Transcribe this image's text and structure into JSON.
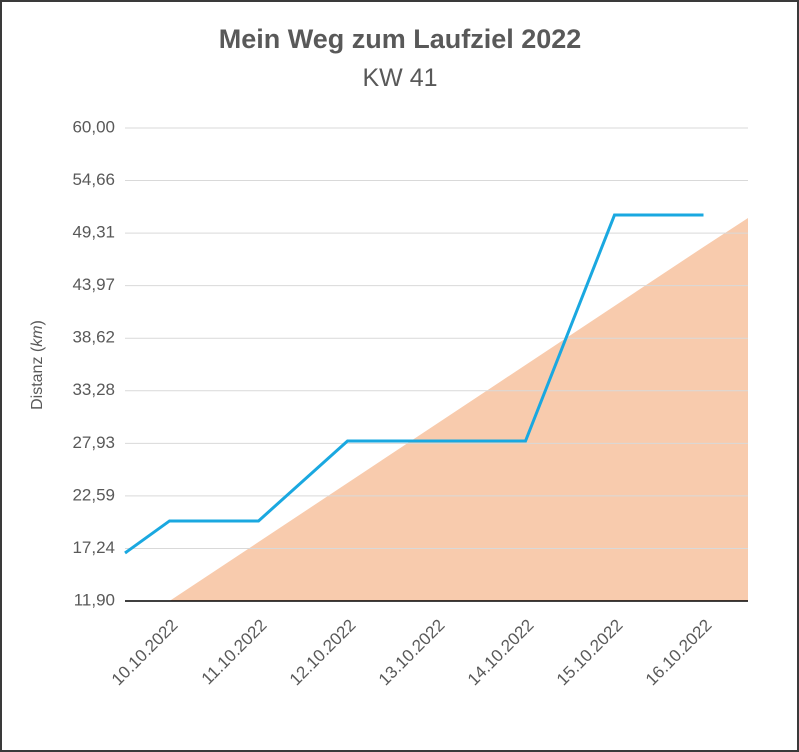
{
  "chart_data": {
    "type": "line",
    "title": "Mein Weg zum Laufziel 2022",
    "subtitle": "KW 41",
    "y_label": [
      "Distanz (",
      "km",
      ")"
    ],
    "categories": [
      null,
      "10.10.2022",
      "11.10.2022",
      "12.10.2022",
      "13.10.2022",
      "14.10.2022",
      "15.10.2022",
      "16.10.2022",
      null
    ],
    "series": [
      {
        "style": "area",
        "color": "#f8cbad",
        "values": [
          null,
          11.9,
          17.9,
          23.9,
          29.9,
          35.9,
          41.9,
          47.9,
          50.85
        ]
      },
      {
        "style": "line",
        "color": "#1aa8e0",
        "values": [
          16.78,
          20.04,
          20.04,
          28.17,
          28.17,
          28.17,
          51.15,
          51.15,
          null
        ]
      }
    ],
    "ylim": [
      11.9,
      60
    ],
    "yticks": [
      {
        "value": 11.9,
        "label": "11,90"
      },
      {
        "value": 17.24,
        "label": "17,24"
      },
      {
        "value": 22.59,
        "label": "22,59"
      },
      {
        "value": 27.93,
        "label": "27,93"
      },
      {
        "value": 33.28,
        "label": "33,28"
      },
      {
        "value": 38.62,
        "label": "38,62"
      },
      {
        "value": 43.97,
        "label": "43,97"
      },
      {
        "value": 49.31,
        "label": "49,31"
      },
      {
        "value": 54.66,
        "label": "54,66"
      },
      {
        "value": 60,
        "label": "60,00"
      }
    ],
    "grid": true
  }
}
